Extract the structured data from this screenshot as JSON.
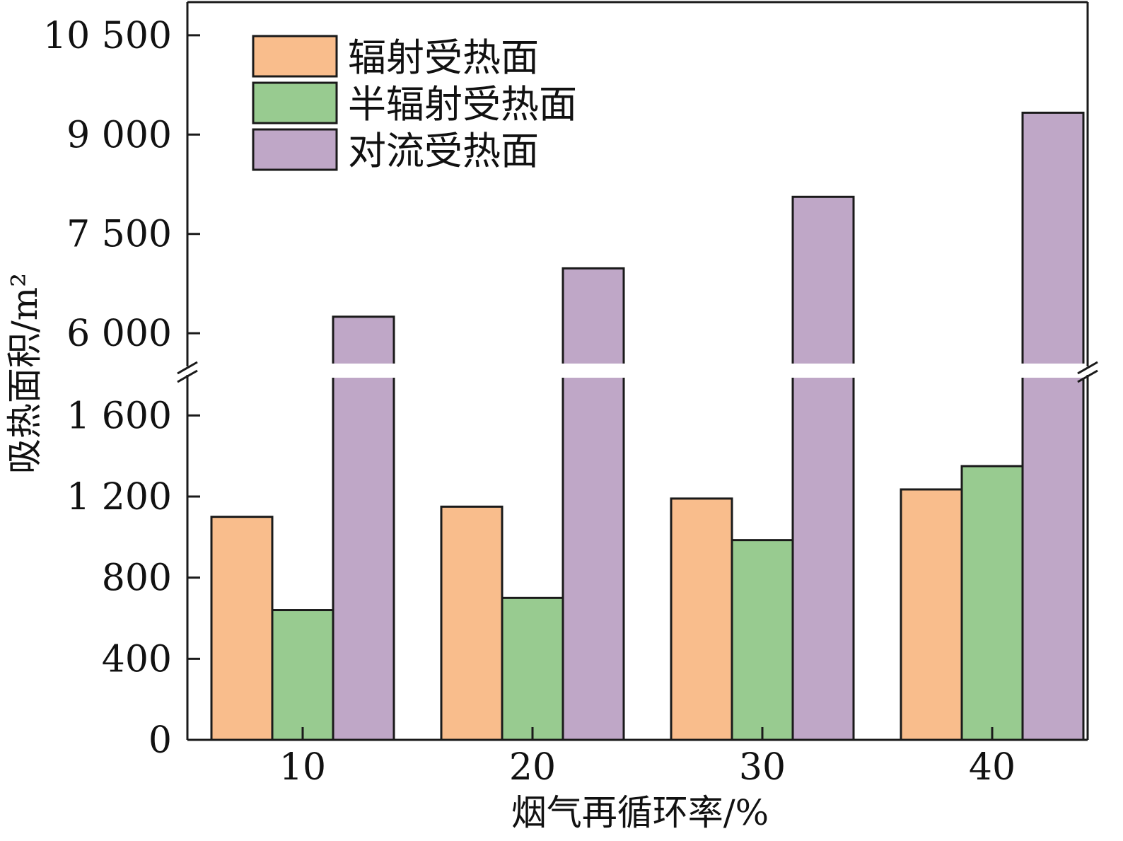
{
  "chart_data": {
    "type": "bar",
    "xlabel": "烟气再循环率/%",
    "ylabel": "吸热面积/m²",
    "categories": [
      "10",
      "20",
      "30",
      "40"
    ],
    "series": [
      {
        "name": "辐射受热面",
        "color": "#f9bd8c",
        "values": [
          1100,
          1150,
          1190,
          1235
        ]
      },
      {
        "name": "半辐射受热面",
        "color": "#98cb90",
        "values": [
          640,
          700,
          985,
          1350
        ]
      },
      {
        "name": "对流受热面",
        "color": "#bfa7c7",
        "values": [
          6250,
          6980,
          8060,
          9330
        ]
      }
    ],
    "broken_axis": {
      "lower_range": [
        0,
        1800
      ],
      "upper_range": [
        5500,
        11000
      ]
    },
    "lower_ticks": [
      "0",
      "400",
      "800",
      "1 200",
      "1 600"
    ],
    "lower_tick_values": [
      0,
      400,
      800,
      1200,
      1600
    ],
    "upper_ticks": [
      "6 000",
      "7 500",
      "9 000",
      "10 500"
    ],
    "upper_tick_values": [
      6000,
      7500,
      9000,
      10500
    ],
    "legend_position": "top-left",
    "grid": false
  }
}
